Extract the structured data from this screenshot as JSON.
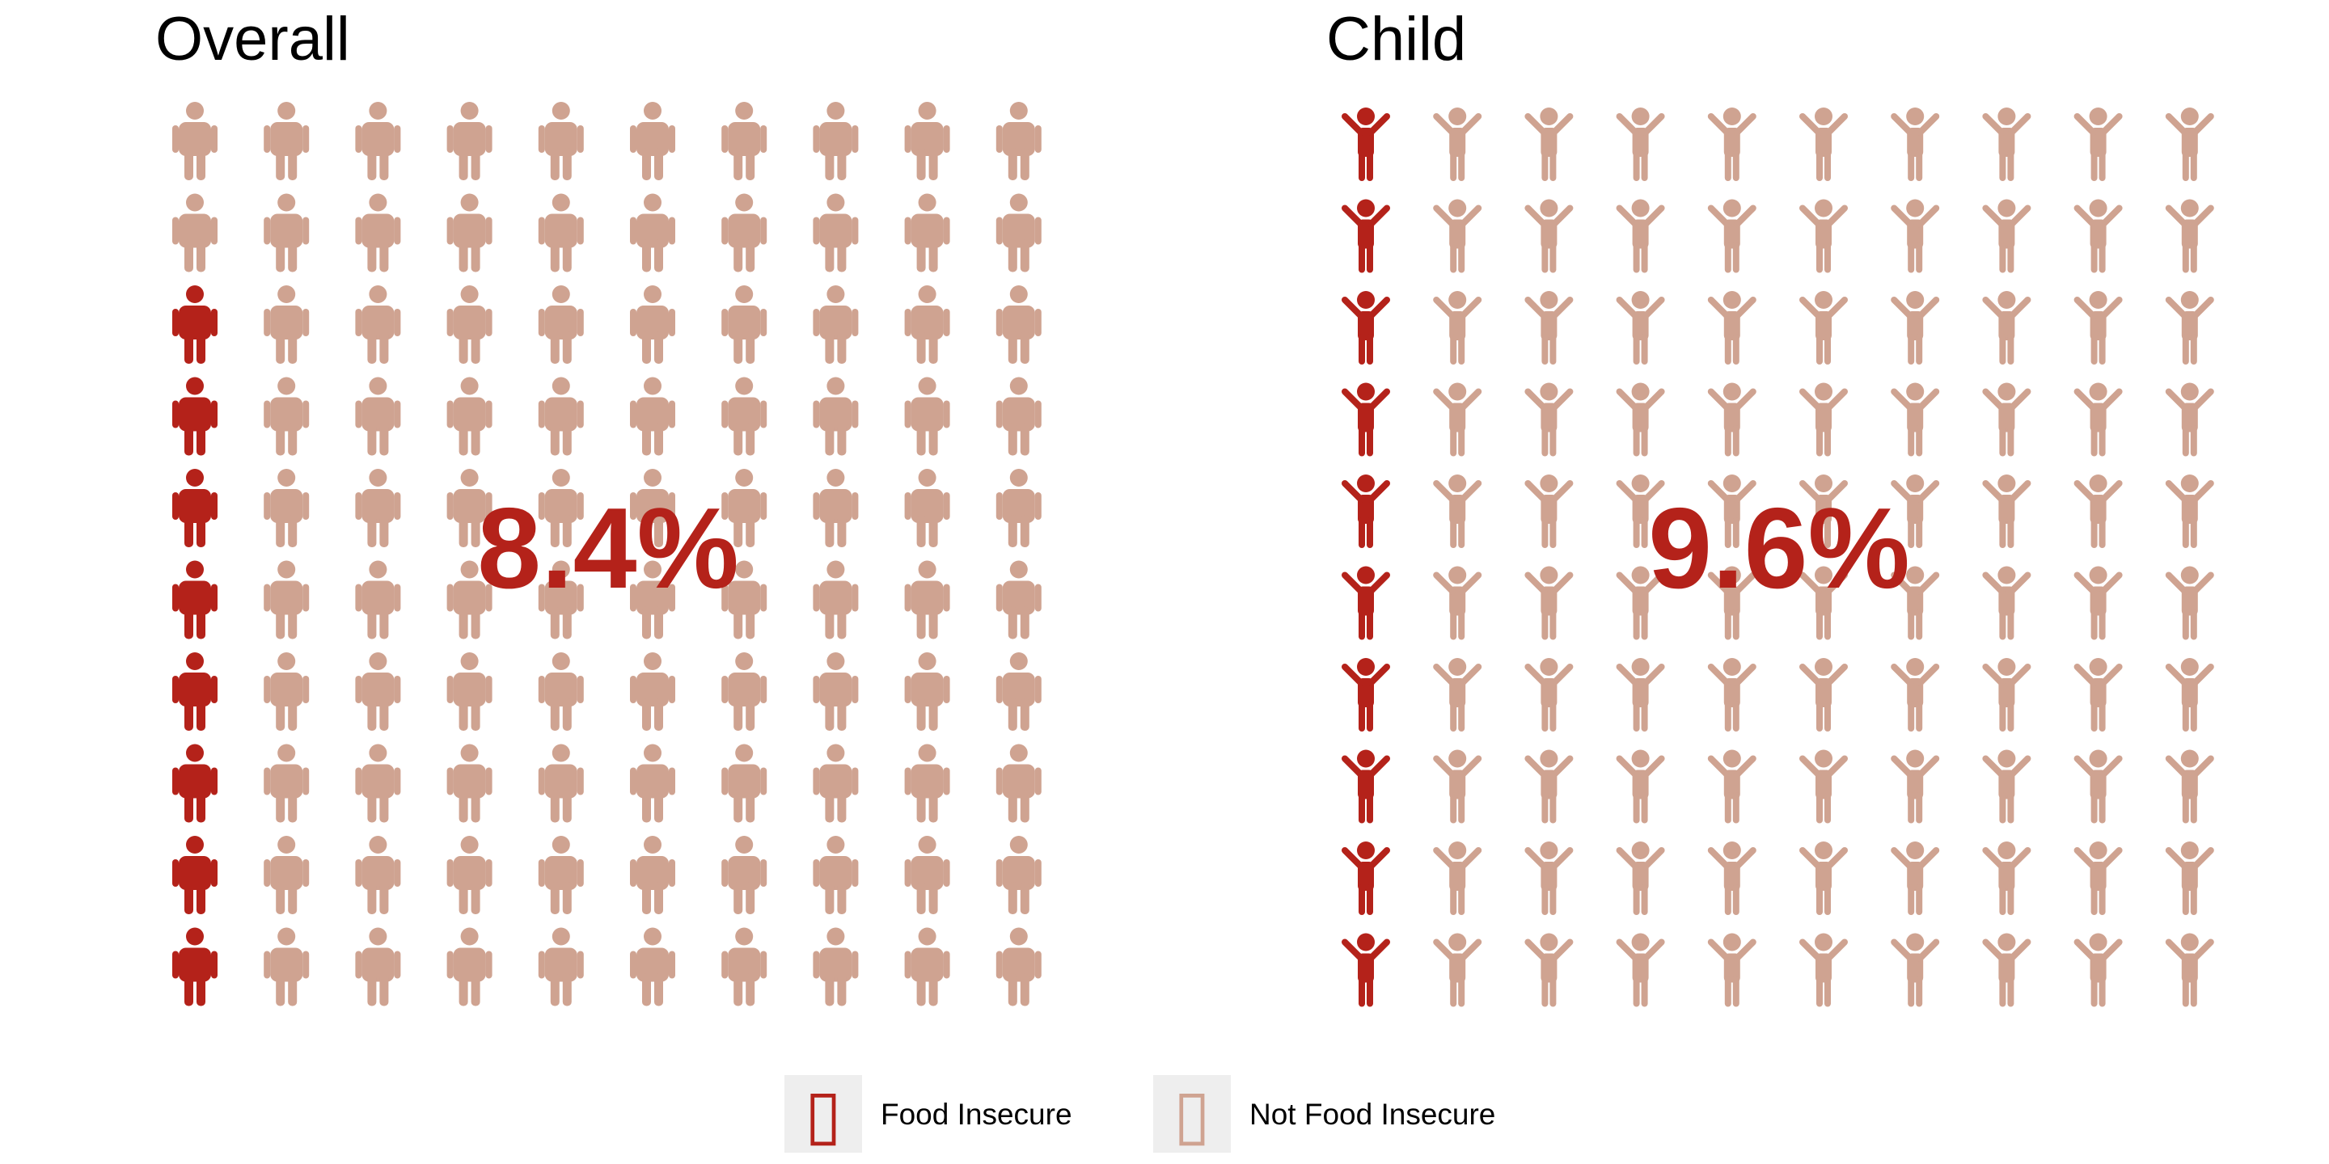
{
  "chart_data": [
    {
      "type": "pictograph",
      "title": "Overall",
      "grid": {
        "rows": 10,
        "cols": 10,
        "fill_order": "column-major from bottom-left"
      },
      "icon": "adult-person-icon",
      "value_percent": 8.4,
      "highlighted_icons": 8,
      "total_icons": 100,
      "label": "8.4%"
    },
    {
      "type": "pictograph",
      "title": "Child",
      "grid": {
        "rows": 10,
        "cols": 10,
        "fill_order": "column-major from bottom-left"
      },
      "icon": "child-person-icon",
      "value_percent": 9.6,
      "highlighted_icons": 10,
      "total_icons": 100,
      "label": "9.6%"
    }
  ],
  "legend": {
    "items": [
      {
        "label": "Food Insecure",
        "color": "#b4221a",
        "glyph": "▯"
      },
      {
        "label": "Not Food Insecure",
        "color": "#cfa391",
        "glyph": "▯"
      }
    ],
    "placement": "bottom"
  },
  "colors": {
    "highlight": "#b4221a",
    "base": "#cfa391",
    "legend_key_bg": "#eeeeee"
  }
}
